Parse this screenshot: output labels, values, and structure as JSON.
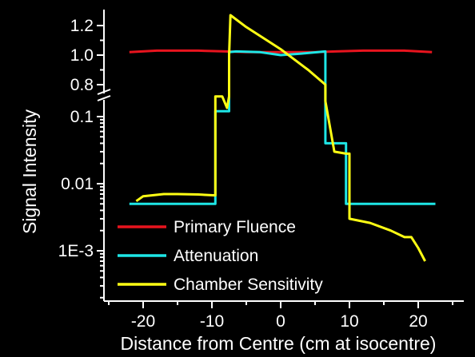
{
  "chart_data": {
    "type": "line",
    "title": "",
    "xlabel": "Distance from Centre (cm at isocentre)",
    "ylabel": "Signal Intensity",
    "xlim": [
      -22.5,
      23
    ],
    "x_ticks": [
      "-20",
      "-10",
      "0",
      "10",
      "20"
    ],
    "y_axis_broken": true,
    "y_upper": {
      "scale": "linear",
      "range": [
        0.75,
        1.3
      ],
      "ticks": [
        "0.8",
        "1.0",
        "1.2"
      ]
    },
    "y_lower": {
      "scale": "log",
      "range": [
        0.0003,
        0.2
      ],
      "ticks": [
        "0.1",
        "0.01",
        "1E-3"
      ]
    },
    "background": "#000000",
    "foreground": "#ffffff",
    "legend_position": "bottom-left",
    "series": [
      {
        "name": "Primary Fluence",
        "color": "#e8141e",
        "x": [
          -22,
          -18,
          -12,
          -8,
          -5,
          0,
          5,
          8,
          12,
          18,
          22
        ],
        "y": [
          1.02,
          1.03,
          1.03,
          1.025,
          1.02,
          1.02,
          1.02,
          1.025,
          1.03,
          1.03,
          1.02
        ]
      },
      {
        "name": "Attenuation",
        "color": "#1ee6e6",
        "x": [
          -22,
          -9.5,
          -9.5,
          -7.5,
          -7.5,
          -6.5,
          -3,
          0,
          3,
          6.5,
          6.5,
          9.5,
          9.5,
          22.5
        ],
        "y": [
          0.005,
          0.005,
          0.12,
          0.12,
          1.02,
          1.025,
          1.02,
          1.0,
          1.01,
          1.025,
          0.04,
          0.04,
          0.005,
          0.005
        ]
      },
      {
        "name": "Chamber Sensitivity",
        "color": "#ffff14",
        "x": [
          -21,
          -20,
          -17,
          -15,
          -12,
          -9.5,
          -9.5,
          -8.5,
          -7.8,
          -7.5,
          -7.5,
          -7.3,
          -5,
          -2,
          0,
          2,
          4,
          6.5,
          6.5,
          7.8,
          7.8,
          9.5,
          10,
          10,
          13,
          16,
          18,
          19,
          20,
          21
        ],
        "y": [
          0.0055,
          0.0065,
          0.007,
          0.007,
          0.0069,
          0.0067,
          0.2,
          0.2,
          0.135,
          0.2,
          1.0,
          1.27,
          1.19,
          1.1,
          1.04,
          0.97,
          0.9,
          0.8,
          0.17,
          0.03,
          0.03,
          0.028,
          0.028,
          0.003,
          0.0026,
          0.002,
          0.0016,
          0.0016,
          0.0011,
          0.0007
        ]
      }
    ]
  }
}
